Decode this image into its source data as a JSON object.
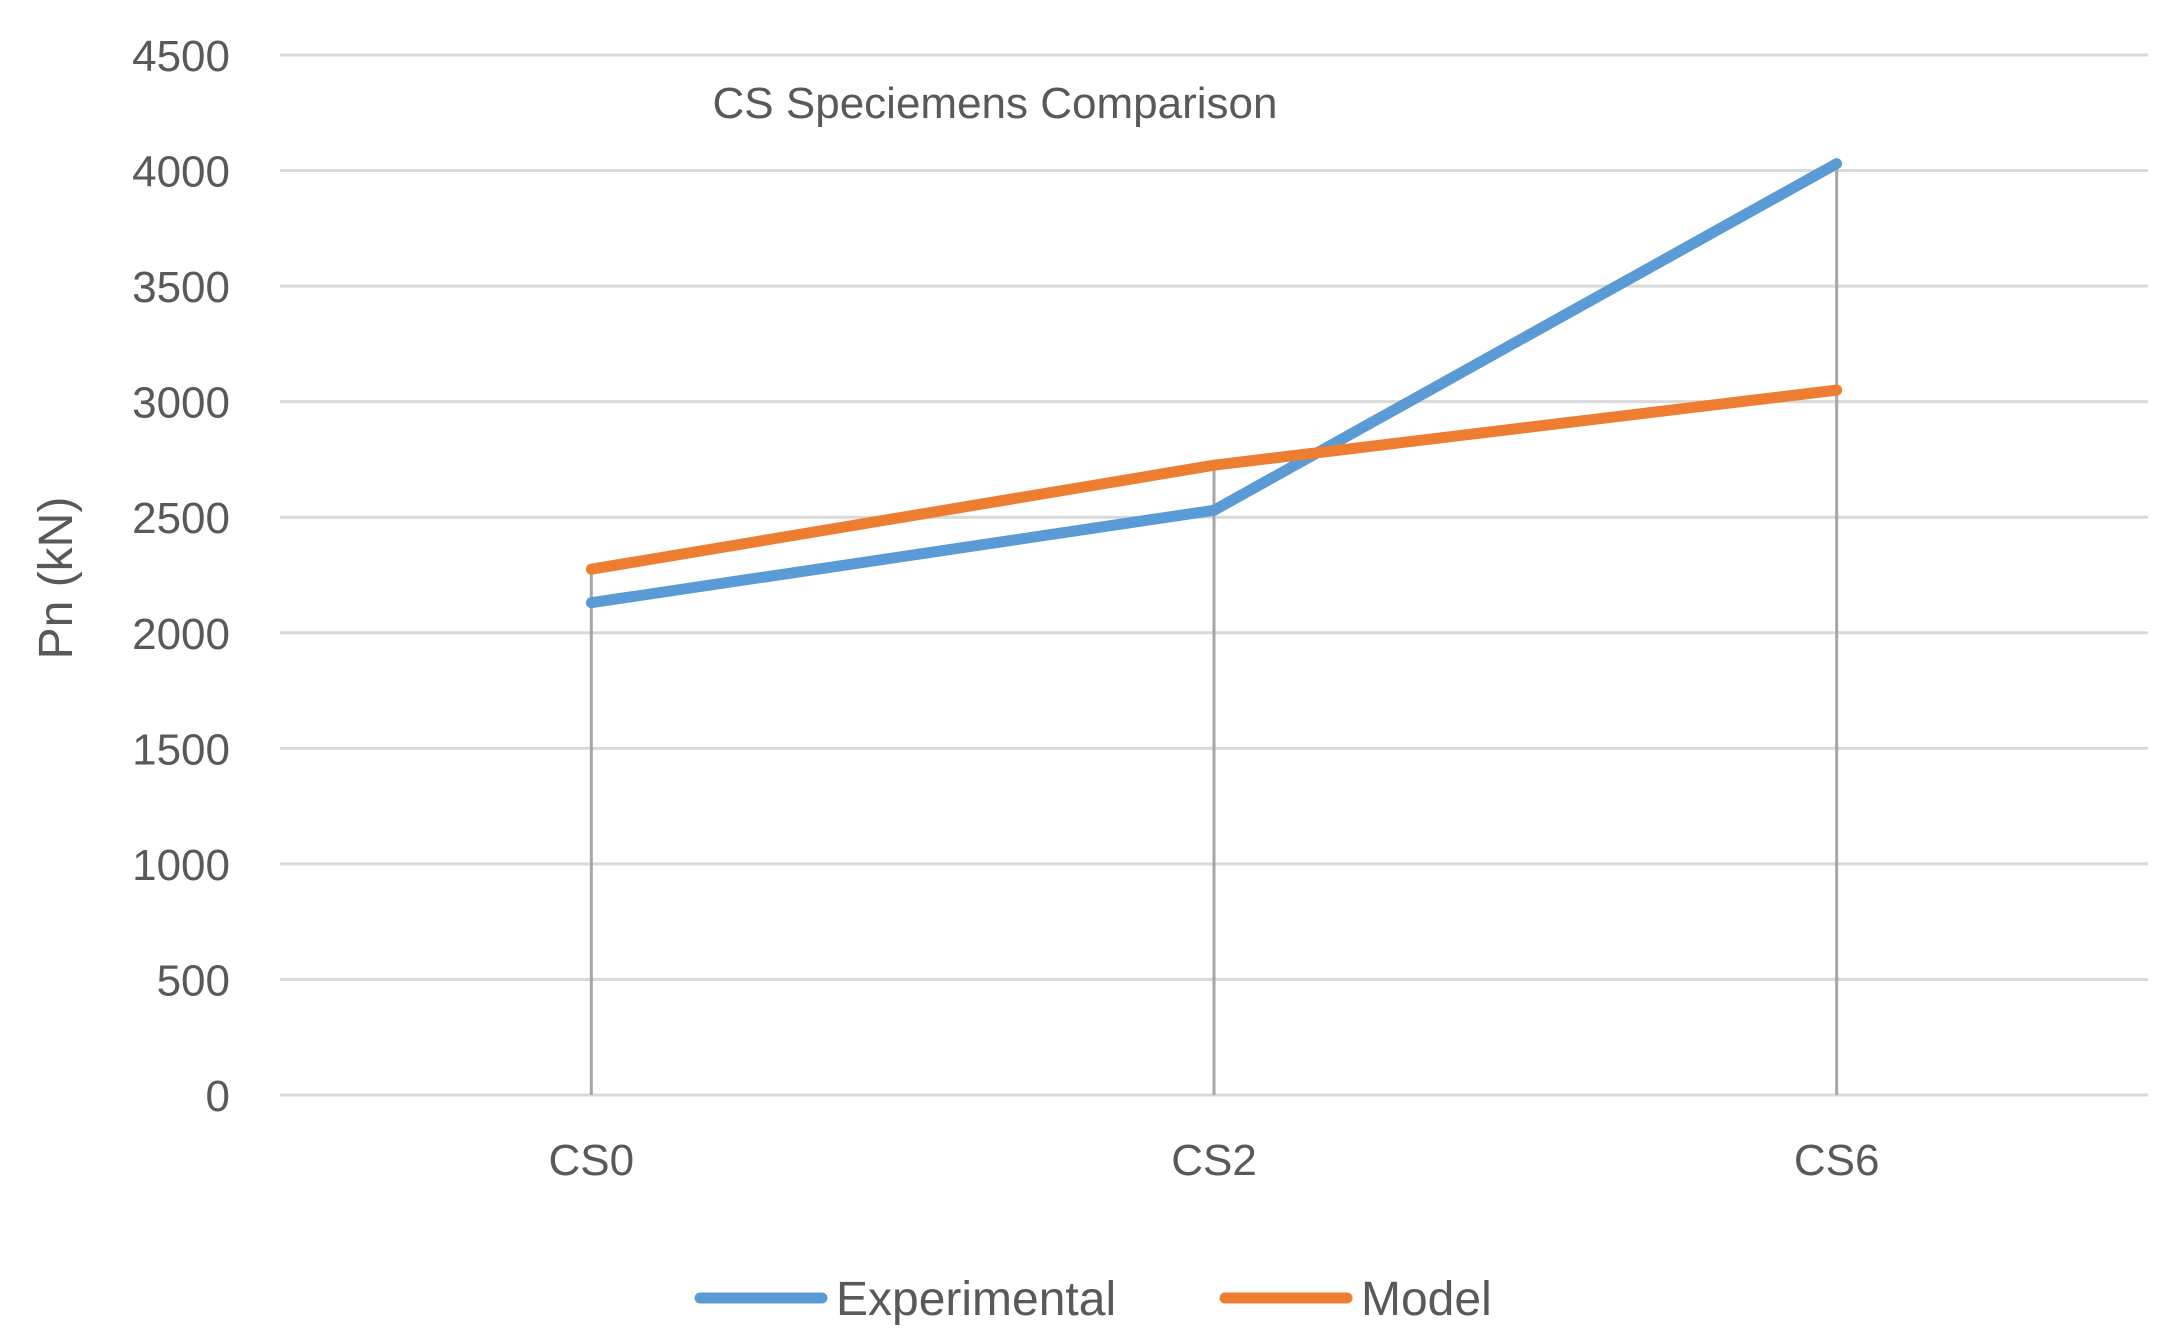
{
  "chart_data": {
    "type": "line",
    "title": "CS Speciemens Comparison",
    "xlabel": "",
    "ylabel": "Pn (kN)",
    "categories": [
      "CS0",
      "CS2",
      "CS6"
    ],
    "ylim": [
      0,
      4500
    ],
    "yticks": [
      0,
      500,
      1000,
      1500,
      2000,
      2500,
      3000,
      3500,
      4000,
      4500
    ],
    "grid": true,
    "drop_lines": true,
    "legend_position": "bottom",
    "series": [
      {
        "name": "Experimental",
        "color": "#5b9bd5",
        "values": [
          2130,
          2530,
          4030
        ]
      },
      {
        "name": "Model",
        "color": "#ed7d31",
        "values": [
          2275,
          2725,
          3050
        ]
      }
    ]
  }
}
